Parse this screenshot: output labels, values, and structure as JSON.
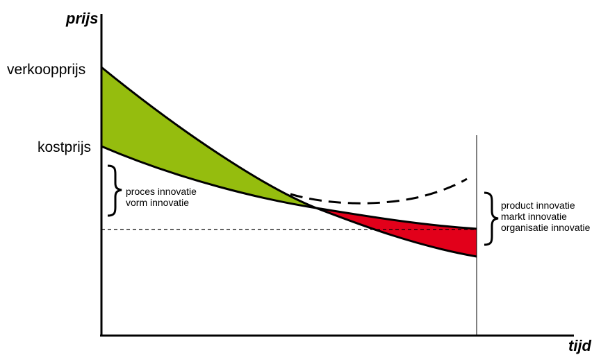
{
  "axes": {
    "y_title": "prijs",
    "x_title": "tijd"
  },
  "labels": {
    "selling_price": "verkoopprijs",
    "cost_price": "kostprijs"
  },
  "notes": {
    "left": [
      "proces innovatie",
      "vorm innovatie"
    ],
    "right": [
      "product innovatie",
      "markt innovatie",
      "organisatie innovatie"
    ]
  },
  "colors": {
    "margin_positive": "#95bd0e",
    "margin_negative": "#e2001a",
    "line": "#000000"
  }
}
